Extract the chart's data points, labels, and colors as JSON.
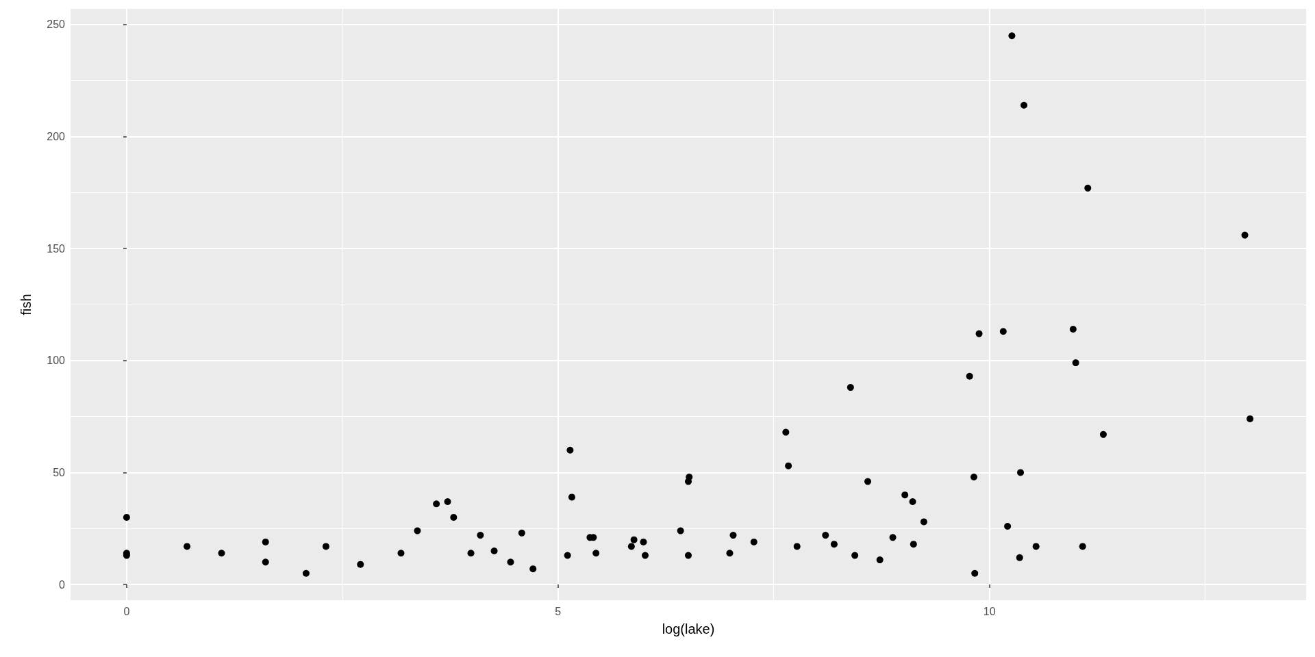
{
  "chart_data": {
    "type": "scatter",
    "xlabel": "log(lake)",
    "ylabel": "fish",
    "color": "#000000",
    "marker": "circle",
    "grid": true,
    "x": [
      0,
      0,
      0,
      0.7,
      1.1,
      1.61,
      1.61,
      2.08,
      2.31,
      2.71,
      3.18,
      3.37,
      3.59,
      3.72,
      3.79,
      3.99,
      4.1,
      4.26,
      4.45,
      4.58,
      4.71,
      5.11,
      5.14,
      5.16,
      5.37,
      5.41,
      5.44,
      5.85,
      5.88,
      5.99,
      6.01,
      6.42,
      6.51,
      6.52,
      6.51,
      6.99,
      7.03,
      7.27,
      7.64,
      7.67,
      7.77,
      8.1,
      8.2,
      8.39,
      8.44,
      8.59,
      8.73,
      8.88,
      9.02,
      9.11,
      9.12,
      9.24,
      9.77,
      9.82,
      9.83,
      9.88,
      10.16,
      10.21,
      10.26,
      10.35,
      10.36,
      10.4,
      10.54,
      10.97,
      11.0,
      11.08,
      11.14,
      11.32,
      12.96,
      13.02
    ],
    "values": [
      30,
      14,
      13,
      17,
      14,
      19,
      10,
      5,
      17,
      9,
      14,
      24,
      36,
      37,
      30,
      14,
      22,
      15,
      10,
      23,
      7,
      13,
      60,
      39,
      21,
      21,
      14,
      17,
      20,
      19,
      13,
      24,
      13,
      48,
      46,
      14,
      22,
      19,
      68,
      53,
      17,
      22,
      18,
      88,
      13,
      46,
      11,
      21,
      40,
      37,
      18,
      28,
      93,
      48,
      5,
      112,
      113,
      26,
      245,
      12,
      50,
      214,
      17,
      114,
      99,
      17,
      177,
      67,
      156,
      74
    ],
    "xlim": [
      -0.65,
      13.67
    ],
    "xticks": [
      0,
      5,
      10
    ],
    "ylim": [
      -7,
      257
    ],
    "yticks": [
      0,
      50,
      100,
      150,
      200,
      250
    ]
  }
}
